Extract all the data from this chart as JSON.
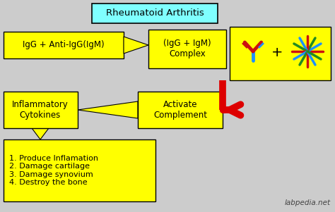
{
  "background_color": "#cccccc",
  "title": "Rheumatoid Arthritis",
  "title_box_color": "#7fffff",
  "yellow": "#ffff00",
  "box1_text": "IgG + Anti-IgG(IgM)",
  "box2_text": "(IgG + IgM)\nComplex",
  "box3_text": "Inflammatory\nCytokines",
  "box4_text": "Activate\nComplement",
  "box5_text": "1. Produce Inflamation\n2. Damage cartilage\n3. Damage synovium\n4. Destroy the bone",
  "watermark": "labpedia.net",
  "text_color": "#000000",
  "red": "#dd0000"
}
